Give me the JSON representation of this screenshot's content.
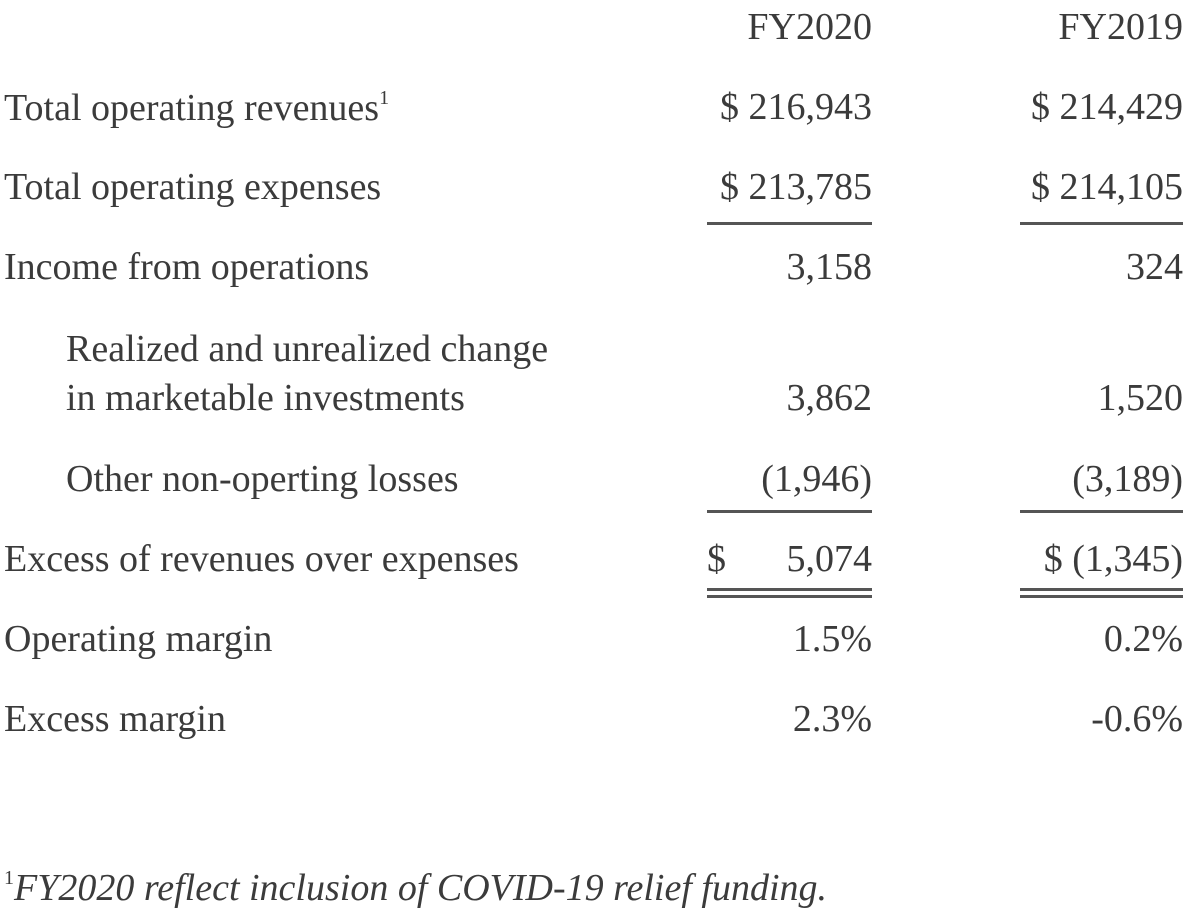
{
  "table": {
    "columns": [
      "FY2020",
      "FY2019"
    ],
    "rows": [
      {
        "label": [
          "Total operating revenues"
        ],
        "footnote_mark": "1",
        "cells": [
          "$ 216,943",
          "$ 214,429"
        ]
      },
      {
        "label": [
          "Total operating expenses"
        ],
        "cells": [
          "$ 213,785",
          "$ 214,105"
        ]
      },
      {
        "label": [
          "Income from operations"
        ],
        "cells": [
          "3,158",
          "324"
        ]
      },
      {
        "label": [
          "Realized and unrealized change",
          "in marketable investments"
        ],
        "cells": [
          "3,862",
          "1,520"
        ]
      },
      {
        "label": [
          "Other non-operting losses"
        ],
        "cells": [
          "(1,946)",
          "(3,189)"
        ]
      },
      {
        "label": [
          "Excess of revenues over expenses"
        ],
        "cells": [
          {
            "currency": "$",
            "amount": "5,074"
          },
          "$ (1,345)"
        ]
      },
      {
        "label": [
          "Operating margin"
        ],
        "cells": [
          "1.5%",
          "0.2%"
        ]
      },
      {
        "label": [
          "Excess margin"
        ],
        "cells": [
          "2.3%",
          "-0.6%"
        ]
      }
    ]
  },
  "footnote": {
    "mark": "1",
    "text": "FY2020 reflect inclusion of COVID-19 relief funding."
  }
}
